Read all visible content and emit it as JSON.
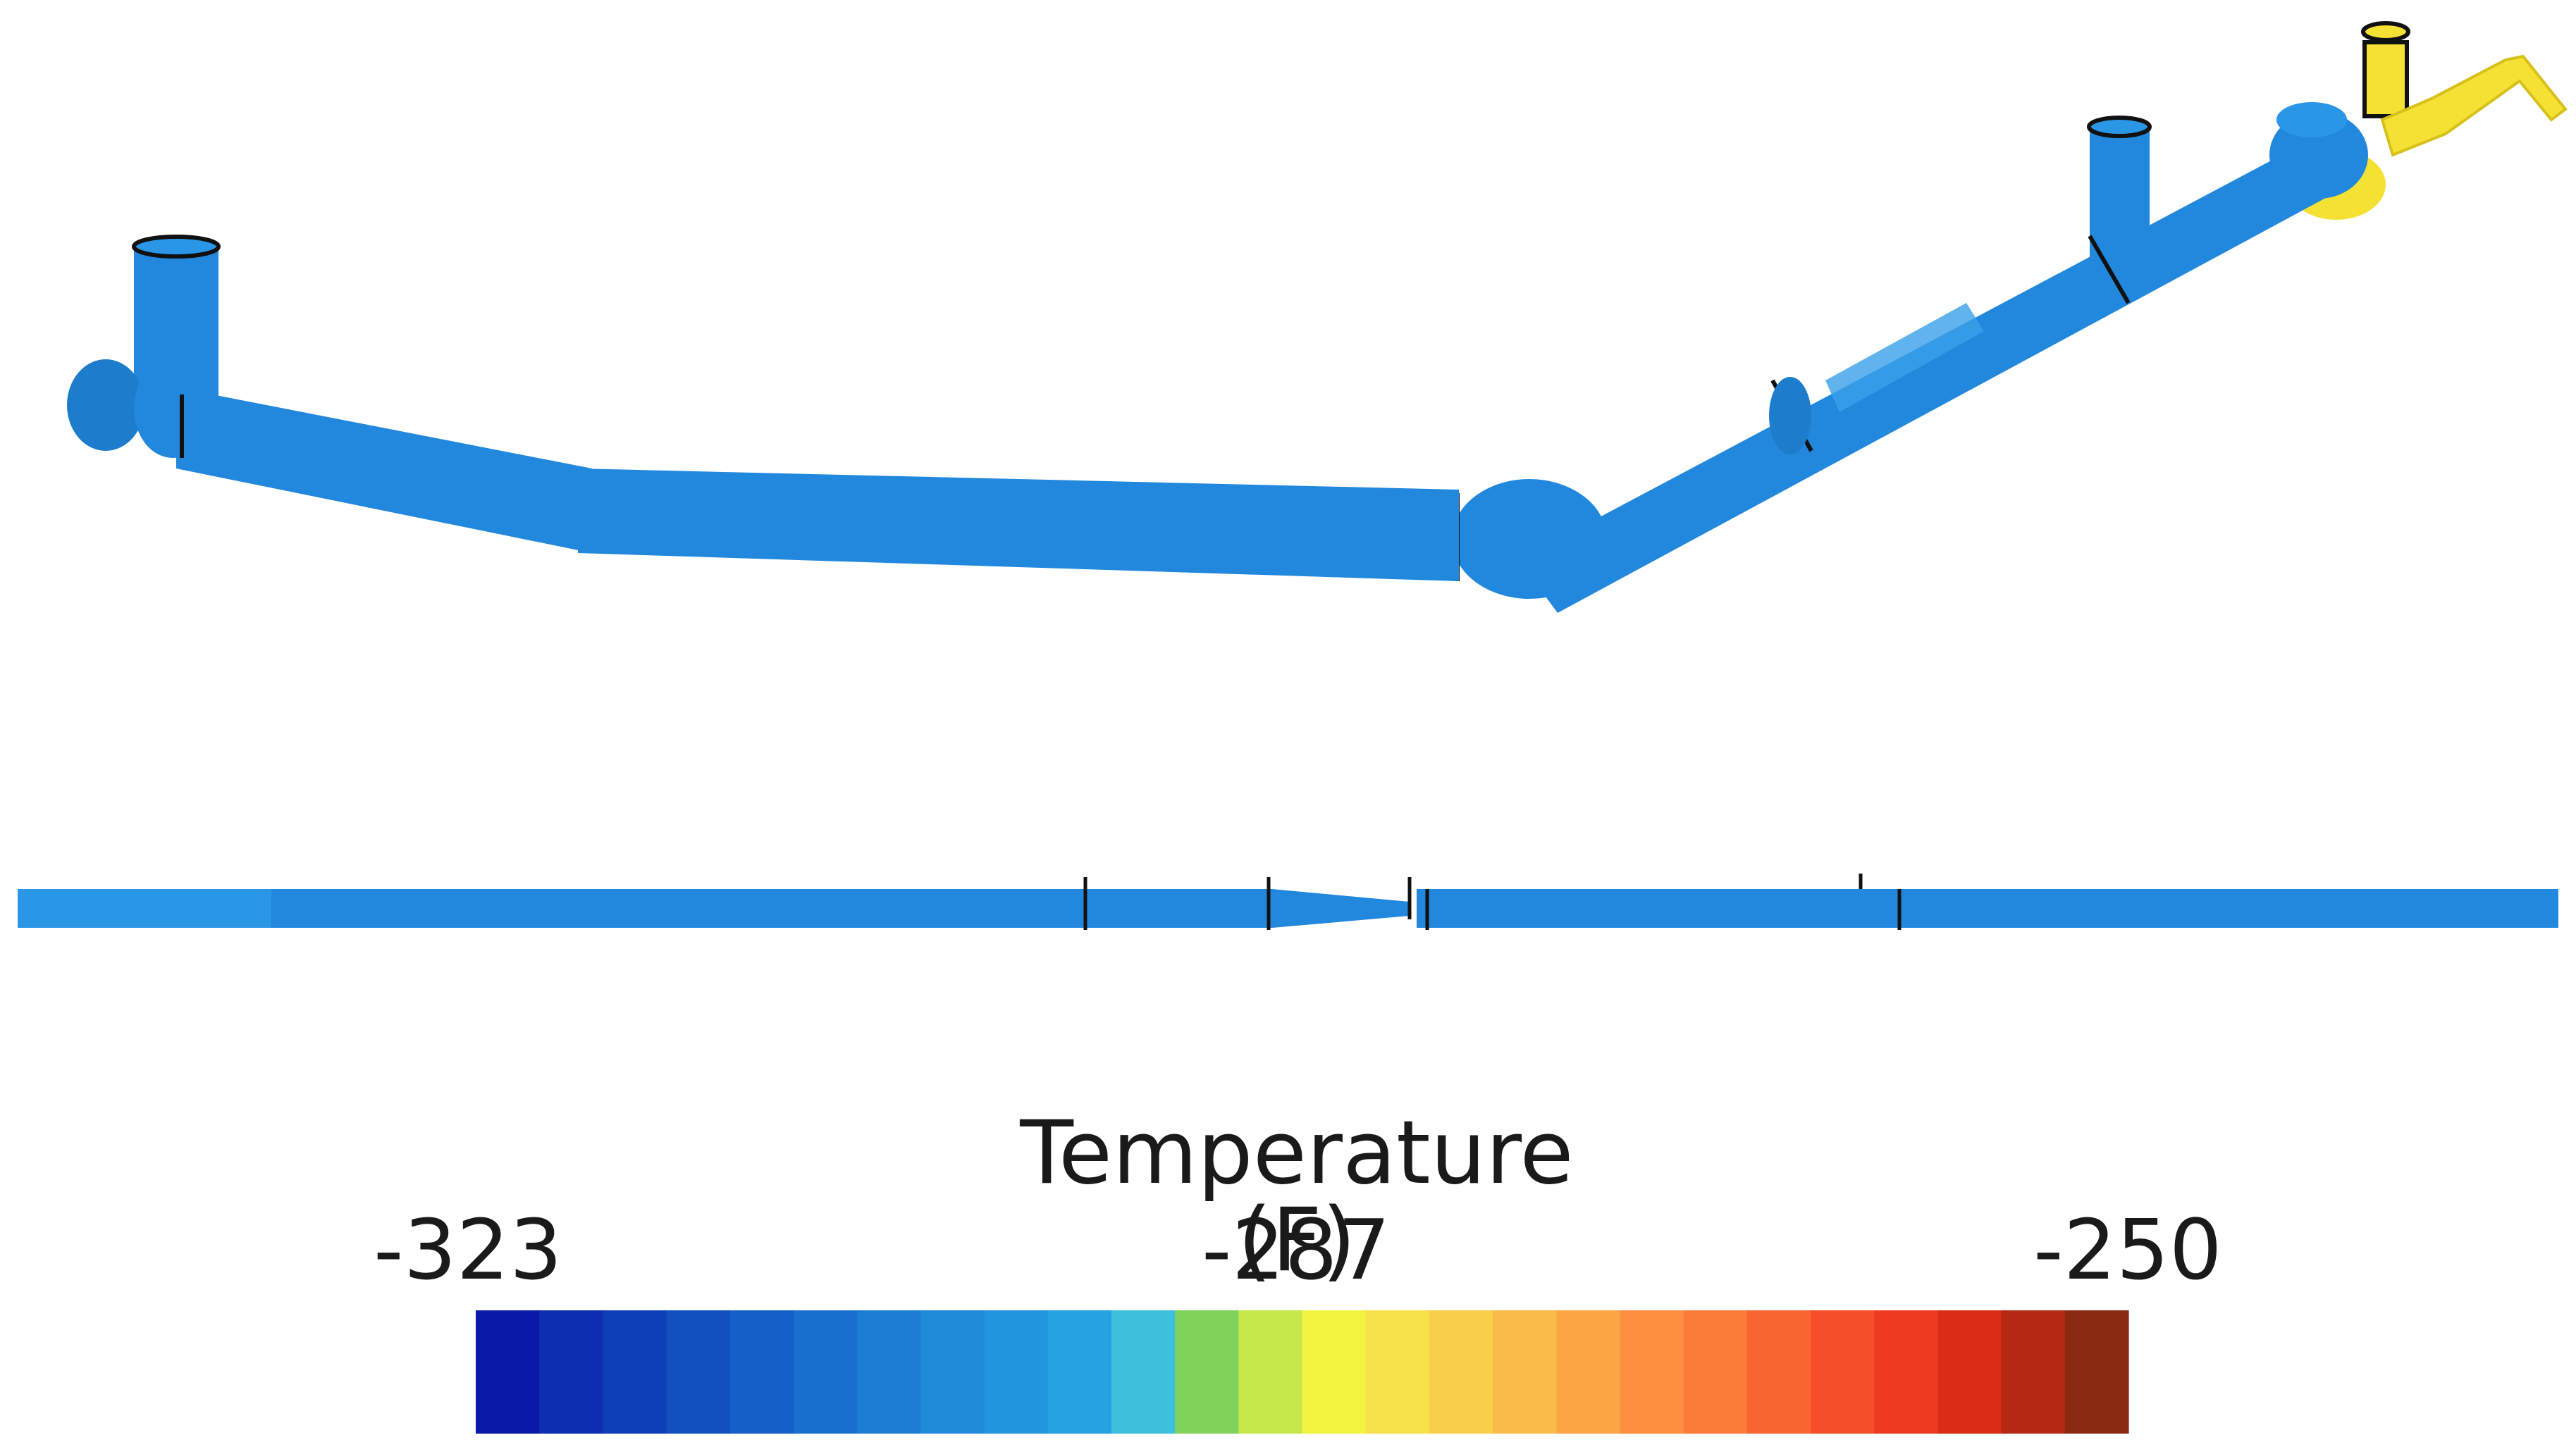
{
  "legend": {
    "title": "Temperature (F)",
    "tick_min": "-323",
    "tick_mid": "-287",
    "tick_max": "-250",
    "scale": [
      -323,
      -250
    ],
    "colormap": [
      "#0a1aa8",
      "#0d2eb0",
      "#0f3fb8",
      "#124fbf",
      "#1560c6",
      "#186fcd",
      "#1b7dd3",
      "#1e8ad8",
      "#2196dc",
      "#25a2e0",
      "#3cc0dc",
      "#7fd25a",
      "#c6e84a",
      "#f2f540",
      "#f7e24a",
      "#f9cf4a",
      "#fbbb48",
      "#fca545",
      "#fc9040",
      "#fb7b39",
      "#f86531",
      "#f44f29",
      "#ed3a20",
      "#d92d18",
      "#b52812",
      "#8a2a10"
    ]
  },
  "colors": {
    "pipe": "#2188dd",
    "pipe_edge": "#1d6fb6",
    "warm_pipe": "#f5e034",
    "outline": "#111111"
  }
}
